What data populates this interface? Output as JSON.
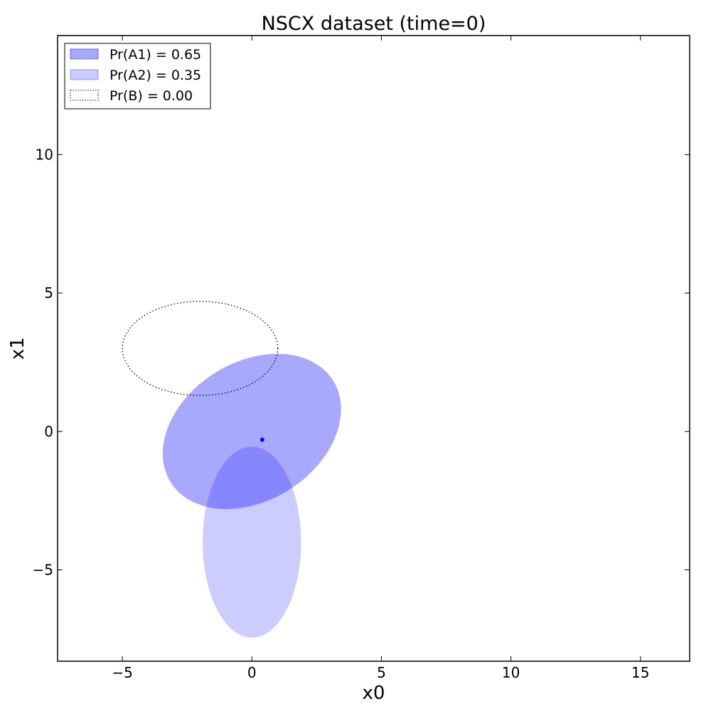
{
  "chart_data": {
    "type": "scatter",
    "title": "NSCX dataset (time=0)",
    "xlabel": "x0",
    "ylabel": "x1",
    "xlim": [
      -7.5,
      16.9
    ],
    "ylim": [
      -8.3,
      14.3
    ],
    "xticks": [
      -5,
      0,
      5,
      10,
      15
    ],
    "yticks": [
      -5,
      0,
      5,
      10
    ],
    "xtick_labels": [
      "−5",
      "0",
      "5",
      "10",
      "15"
    ],
    "ytick_labels": [
      "−5",
      "0",
      "5",
      "10"
    ],
    "grid": false,
    "legend_position": "top-left",
    "series": [
      {
        "name": "Pr(A1) = 0.65",
        "kind": "ellipse",
        "center": [
          0.0,
          0.0
        ],
        "semi_axes": [
          3.7,
          2.5
        ],
        "angle_deg": 32,
        "fill": "#0000ff",
        "alpha": 0.34,
        "linestyle": "solid"
      },
      {
        "name": "Pr(A2) = 0.35",
        "kind": "ellipse",
        "center": [
          0.0,
          -4.0
        ],
        "semi_axes": [
          1.9,
          3.45
        ],
        "angle_deg": 0,
        "fill": "#0000ff",
        "alpha": 0.2,
        "linestyle": "solid"
      },
      {
        "name": "Pr(B) = 0.00",
        "kind": "ellipse",
        "center": [
          -2.0,
          3.0
        ],
        "semi_axes": [
          3.0,
          1.7
        ],
        "angle_deg": 0,
        "fill": "none",
        "alpha": 1,
        "linestyle": "dotted"
      }
    ],
    "points": [
      {
        "x": 0.4,
        "y": -0.3,
        "color": "#0000ff"
      }
    ]
  }
}
